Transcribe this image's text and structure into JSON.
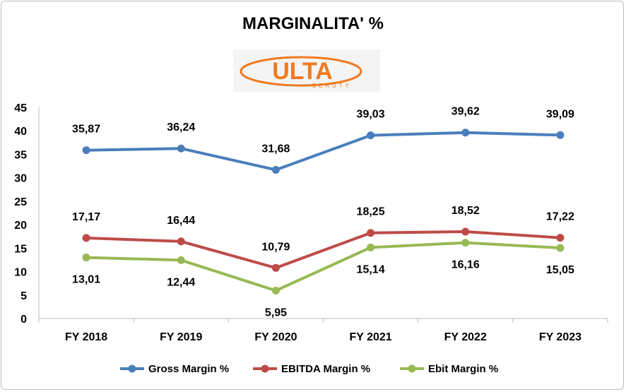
{
  "chart_data": {
    "type": "line",
    "title": "MARGINALITA' %",
    "logo_text": "ULTA BEAUTY",
    "categories": [
      "FY 2018",
      "FY 2019",
      "FY 2020",
      "FY 2021",
      "FY 2022",
      "FY 2023"
    ],
    "series": [
      {
        "name": "Gross Margin %",
        "color": "#4a7ebb",
        "values": [
          35.87,
          36.24,
          31.68,
          39.03,
          39.62,
          39.09
        ],
        "labels": [
          "35,87",
          "36,24",
          "31,68",
          "39,03",
          "39,62",
          "39,09"
        ]
      },
      {
        "name": "EBITDA Margin %",
        "color": "#be4b48",
        "values": [
          17.17,
          16.44,
          10.79,
          18.25,
          18.52,
          17.22
        ],
        "labels": [
          "17,17",
          "16,44",
          "10,79",
          "18,25",
          "18,52",
          "17,22"
        ]
      },
      {
        "name": "Ebit Margin %",
        "color": "#98b954",
        "values": [
          13.01,
          12.44,
          5.95,
          15.14,
          16.16,
          15.05
        ],
        "labels": [
          "13,01",
          "12,44",
          "5,95",
          "15,14",
          "16,16",
          "15,05"
        ]
      }
    ],
    "ylim": [
      0,
      45
    ],
    "yticks": [
      "0",
      "5",
      "10",
      "15",
      "20",
      "25",
      "30",
      "35",
      "40",
      "45"
    ],
    "grid": false,
    "legend_position": "bottom"
  }
}
